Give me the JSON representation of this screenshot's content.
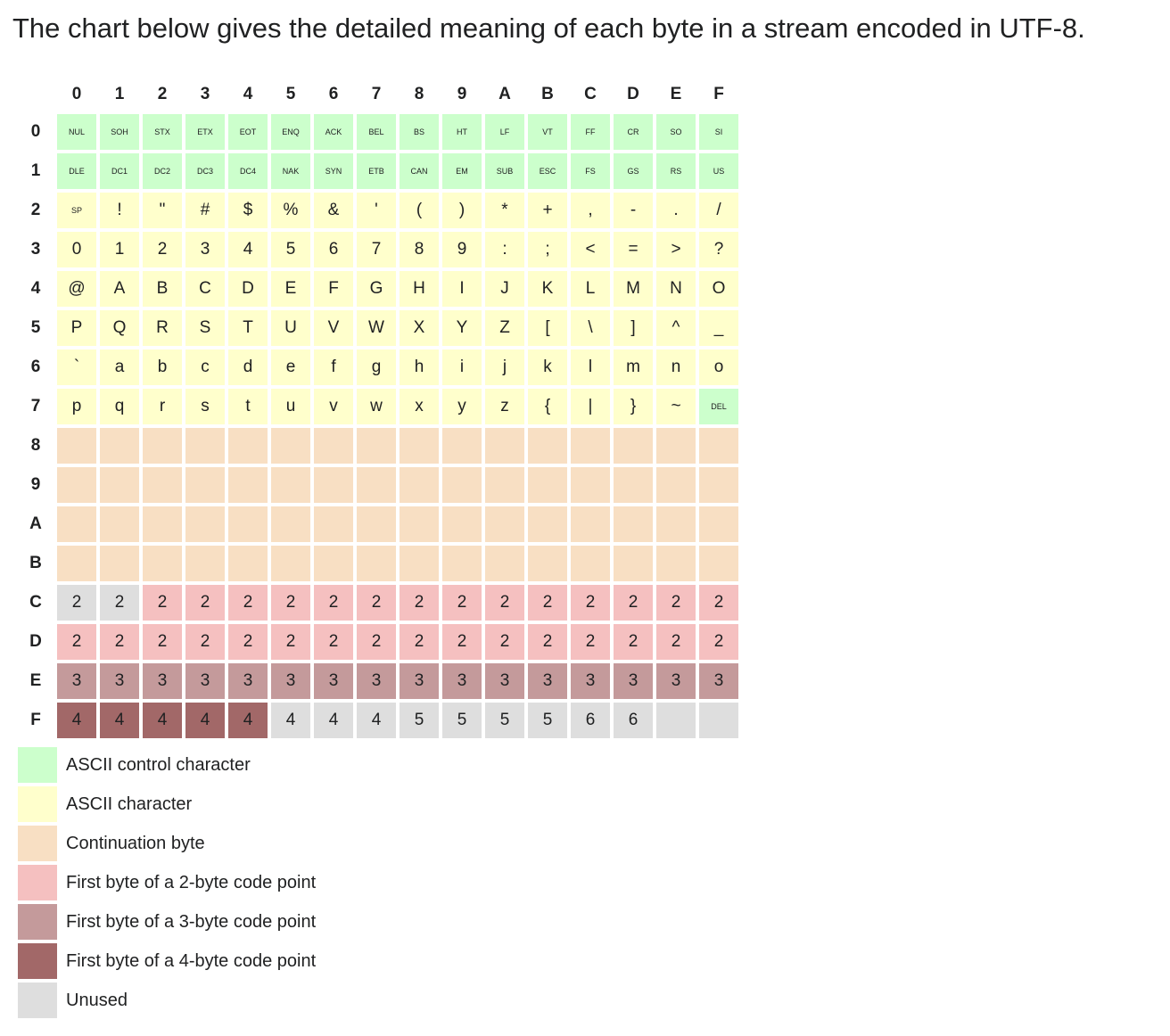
{
  "intro": "The chart below gives the detailed meaning of each byte in a stream encoded in UTF-8.",
  "colors": {
    "ctrl": "#ccffcc",
    "ascii": "#ffffcc",
    "cont": "#f8dfc3",
    "b2": "#f5c0c0",
    "b3": "#c49a9b",
    "b4": "#a26868",
    "unused": "#dedede"
  },
  "columns": [
    "0",
    "1",
    "2",
    "3",
    "4",
    "5",
    "6",
    "7",
    "8",
    "9",
    "A",
    "B",
    "C",
    "D",
    "E",
    "F"
  ],
  "rows": [
    {
      "head": "0",
      "cells": [
        {
          "t": "NUL",
          "k": "ctrl"
        },
        {
          "t": "SOH",
          "k": "ctrl"
        },
        {
          "t": "STX",
          "k": "ctrl"
        },
        {
          "t": "ETX",
          "k": "ctrl"
        },
        {
          "t": "EOT",
          "k": "ctrl"
        },
        {
          "t": "ENQ",
          "k": "ctrl"
        },
        {
          "t": "ACK",
          "k": "ctrl"
        },
        {
          "t": "BEL",
          "k": "ctrl"
        },
        {
          "t": "BS",
          "k": "ctrl"
        },
        {
          "t": "HT",
          "k": "ctrl"
        },
        {
          "t": "LF",
          "k": "ctrl"
        },
        {
          "t": "VT",
          "k": "ctrl"
        },
        {
          "t": "FF",
          "k": "ctrl"
        },
        {
          "t": "CR",
          "k": "ctrl"
        },
        {
          "t": "SO",
          "k": "ctrl"
        },
        {
          "t": "SI",
          "k": "ctrl"
        }
      ]
    },
    {
      "head": "1",
      "cells": [
        {
          "t": "DLE",
          "k": "ctrl"
        },
        {
          "t": "DC1",
          "k": "ctrl"
        },
        {
          "t": "DC2",
          "k": "ctrl"
        },
        {
          "t": "DC3",
          "k": "ctrl"
        },
        {
          "t": "DC4",
          "k": "ctrl"
        },
        {
          "t": "NAK",
          "k": "ctrl"
        },
        {
          "t": "SYN",
          "k": "ctrl"
        },
        {
          "t": "ETB",
          "k": "ctrl"
        },
        {
          "t": "CAN",
          "k": "ctrl"
        },
        {
          "t": "EM",
          "k": "ctrl"
        },
        {
          "t": "SUB",
          "k": "ctrl"
        },
        {
          "t": "ESC",
          "k": "ctrl"
        },
        {
          "t": "FS",
          "k": "ctrl"
        },
        {
          "t": "GS",
          "k": "ctrl"
        },
        {
          "t": "RS",
          "k": "ctrl"
        },
        {
          "t": "US",
          "k": "ctrl"
        }
      ]
    },
    {
      "head": "2",
      "cells": [
        {
          "t": "SP",
          "k": "ascii",
          "small": true
        },
        {
          "t": "!",
          "k": "ascii"
        },
        {
          "t": "\"",
          "k": "ascii"
        },
        {
          "t": "#",
          "k": "ascii"
        },
        {
          "t": "$",
          "k": "ascii"
        },
        {
          "t": "%",
          "k": "ascii"
        },
        {
          "t": "&",
          "k": "ascii"
        },
        {
          "t": "'",
          "k": "ascii"
        },
        {
          "t": "(",
          "k": "ascii"
        },
        {
          "t": ")",
          "k": "ascii"
        },
        {
          "t": "*",
          "k": "ascii"
        },
        {
          "t": "+",
          "k": "ascii"
        },
        {
          "t": ",",
          "k": "ascii"
        },
        {
          "t": "-",
          "k": "ascii"
        },
        {
          "t": ".",
          "k": "ascii"
        },
        {
          "t": "/",
          "k": "ascii"
        }
      ]
    },
    {
      "head": "3",
      "cells": [
        {
          "t": "0",
          "k": "ascii"
        },
        {
          "t": "1",
          "k": "ascii"
        },
        {
          "t": "2",
          "k": "ascii"
        },
        {
          "t": "3",
          "k": "ascii"
        },
        {
          "t": "4",
          "k": "ascii"
        },
        {
          "t": "5",
          "k": "ascii"
        },
        {
          "t": "6",
          "k": "ascii"
        },
        {
          "t": "7",
          "k": "ascii"
        },
        {
          "t": "8",
          "k": "ascii"
        },
        {
          "t": "9",
          "k": "ascii"
        },
        {
          "t": ":",
          "k": "ascii"
        },
        {
          "t": ";",
          "k": "ascii"
        },
        {
          "t": "<",
          "k": "ascii"
        },
        {
          "t": "=",
          "k": "ascii"
        },
        {
          "t": ">",
          "k": "ascii"
        },
        {
          "t": "?",
          "k": "ascii"
        }
      ]
    },
    {
      "head": "4",
      "cells": [
        {
          "t": "@",
          "k": "ascii"
        },
        {
          "t": "A",
          "k": "ascii"
        },
        {
          "t": "B",
          "k": "ascii"
        },
        {
          "t": "C",
          "k": "ascii"
        },
        {
          "t": "D",
          "k": "ascii"
        },
        {
          "t": "E",
          "k": "ascii"
        },
        {
          "t": "F",
          "k": "ascii"
        },
        {
          "t": "G",
          "k": "ascii"
        },
        {
          "t": "H",
          "k": "ascii"
        },
        {
          "t": "I",
          "k": "ascii"
        },
        {
          "t": "J",
          "k": "ascii"
        },
        {
          "t": "K",
          "k": "ascii"
        },
        {
          "t": "L",
          "k": "ascii"
        },
        {
          "t": "M",
          "k": "ascii"
        },
        {
          "t": "N",
          "k": "ascii"
        },
        {
          "t": "O",
          "k": "ascii"
        }
      ]
    },
    {
      "head": "5",
      "cells": [
        {
          "t": "P",
          "k": "ascii"
        },
        {
          "t": "Q",
          "k": "ascii"
        },
        {
          "t": "R",
          "k": "ascii"
        },
        {
          "t": "S",
          "k": "ascii"
        },
        {
          "t": "T",
          "k": "ascii"
        },
        {
          "t": "U",
          "k": "ascii"
        },
        {
          "t": "V",
          "k": "ascii"
        },
        {
          "t": "W",
          "k": "ascii"
        },
        {
          "t": "X",
          "k": "ascii"
        },
        {
          "t": "Y",
          "k": "ascii"
        },
        {
          "t": "Z",
          "k": "ascii"
        },
        {
          "t": "[",
          "k": "ascii"
        },
        {
          "t": "\\",
          "k": "ascii"
        },
        {
          "t": "]",
          "k": "ascii"
        },
        {
          "t": "^",
          "k": "ascii"
        },
        {
          "t": "_",
          "k": "ascii"
        }
      ]
    },
    {
      "head": "6",
      "cells": [
        {
          "t": "`",
          "k": "ascii"
        },
        {
          "t": "a",
          "k": "ascii"
        },
        {
          "t": "b",
          "k": "ascii"
        },
        {
          "t": "c",
          "k": "ascii"
        },
        {
          "t": "d",
          "k": "ascii"
        },
        {
          "t": "e",
          "k": "ascii"
        },
        {
          "t": "f",
          "k": "ascii"
        },
        {
          "t": "g",
          "k": "ascii"
        },
        {
          "t": "h",
          "k": "ascii"
        },
        {
          "t": "i",
          "k": "ascii"
        },
        {
          "t": "j",
          "k": "ascii"
        },
        {
          "t": "k",
          "k": "ascii"
        },
        {
          "t": "l",
          "k": "ascii"
        },
        {
          "t": "m",
          "k": "ascii"
        },
        {
          "t": "n",
          "k": "ascii"
        },
        {
          "t": "o",
          "k": "ascii"
        }
      ]
    },
    {
      "head": "7",
      "cells": [
        {
          "t": "p",
          "k": "ascii"
        },
        {
          "t": "q",
          "k": "ascii"
        },
        {
          "t": "r",
          "k": "ascii"
        },
        {
          "t": "s",
          "k": "ascii"
        },
        {
          "t": "t",
          "k": "ascii"
        },
        {
          "t": "u",
          "k": "ascii"
        },
        {
          "t": "v",
          "k": "ascii"
        },
        {
          "t": "w",
          "k": "ascii"
        },
        {
          "t": "x",
          "k": "ascii"
        },
        {
          "t": "y",
          "k": "ascii"
        },
        {
          "t": "z",
          "k": "ascii"
        },
        {
          "t": "{",
          "k": "ascii"
        },
        {
          "t": "|",
          "k": "ascii"
        },
        {
          "t": "}",
          "k": "ascii"
        },
        {
          "t": "~",
          "k": "ascii"
        },
        {
          "t": "DEL",
          "k": "ctrl"
        }
      ]
    },
    {
      "head": "8",
      "cells": [
        {
          "t": "",
          "k": "cont"
        },
        {
          "t": "",
          "k": "cont"
        },
        {
          "t": "",
          "k": "cont"
        },
        {
          "t": "",
          "k": "cont"
        },
        {
          "t": "",
          "k": "cont"
        },
        {
          "t": "",
          "k": "cont"
        },
        {
          "t": "",
          "k": "cont"
        },
        {
          "t": "",
          "k": "cont"
        },
        {
          "t": "",
          "k": "cont"
        },
        {
          "t": "",
          "k": "cont"
        },
        {
          "t": "",
          "k": "cont"
        },
        {
          "t": "",
          "k": "cont"
        },
        {
          "t": "",
          "k": "cont"
        },
        {
          "t": "",
          "k": "cont"
        },
        {
          "t": "",
          "k": "cont"
        },
        {
          "t": "",
          "k": "cont"
        }
      ]
    },
    {
      "head": "9",
      "cells": [
        {
          "t": "",
          "k": "cont"
        },
        {
          "t": "",
          "k": "cont"
        },
        {
          "t": "",
          "k": "cont"
        },
        {
          "t": "",
          "k": "cont"
        },
        {
          "t": "",
          "k": "cont"
        },
        {
          "t": "",
          "k": "cont"
        },
        {
          "t": "",
          "k": "cont"
        },
        {
          "t": "",
          "k": "cont"
        },
        {
          "t": "",
          "k": "cont"
        },
        {
          "t": "",
          "k": "cont"
        },
        {
          "t": "",
          "k": "cont"
        },
        {
          "t": "",
          "k": "cont"
        },
        {
          "t": "",
          "k": "cont"
        },
        {
          "t": "",
          "k": "cont"
        },
        {
          "t": "",
          "k": "cont"
        },
        {
          "t": "",
          "k": "cont"
        }
      ]
    },
    {
      "head": "A",
      "cells": [
        {
          "t": "",
          "k": "cont"
        },
        {
          "t": "",
          "k": "cont"
        },
        {
          "t": "",
          "k": "cont"
        },
        {
          "t": "",
          "k": "cont"
        },
        {
          "t": "",
          "k": "cont"
        },
        {
          "t": "",
          "k": "cont"
        },
        {
          "t": "",
          "k": "cont"
        },
        {
          "t": "",
          "k": "cont"
        },
        {
          "t": "",
          "k": "cont"
        },
        {
          "t": "",
          "k": "cont"
        },
        {
          "t": "",
          "k": "cont"
        },
        {
          "t": "",
          "k": "cont"
        },
        {
          "t": "",
          "k": "cont"
        },
        {
          "t": "",
          "k": "cont"
        },
        {
          "t": "",
          "k": "cont"
        },
        {
          "t": "",
          "k": "cont"
        }
      ]
    },
    {
      "head": "B",
      "cells": [
        {
          "t": "",
          "k": "cont"
        },
        {
          "t": "",
          "k": "cont"
        },
        {
          "t": "",
          "k": "cont"
        },
        {
          "t": "",
          "k": "cont"
        },
        {
          "t": "",
          "k": "cont"
        },
        {
          "t": "",
          "k": "cont"
        },
        {
          "t": "",
          "k": "cont"
        },
        {
          "t": "",
          "k": "cont"
        },
        {
          "t": "",
          "k": "cont"
        },
        {
          "t": "",
          "k": "cont"
        },
        {
          "t": "",
          "k": "cont"
        },
        {
          "t": "",
          "k": "cont"
        },
        {
          "t": "",
          "k": "cont"
        },
        {
          "t": "",
          "k": "cont"
        },
        {
          "t": "",
          "k": "cont"
        },
        {
          "t": "",
          "k": "cont"
        }
      ]
    },
    {
      "head": "C",
      "cells": [
        {
          "t": "2",
          "k": "unused"
        },
        {
          "t": "2",
          "k": "unused"
        },
        {
          "t": "2",
          "k": "b2"
        },
        {
          "t": "2",
          "k": "b2"
        },
        {
          "t": "2",
          "k": "b2"
        },
        {
          "t": "2",
          "k": "b2"
        },
        {
          "t": "2",
          "k": "b2"
        },
        {
          "t": "2",
          "k": "b2"
        },
        {
          "t": "2",
          "k": "b2"
        },
        {
          "t": "2",
          "k": "b2"
        },
        {
          "t": "2",
          "k": "b2"
        },
        {
          "t": "2",
          "k": "b2"
        },
        {
          "t": "2",
          "k": "b2"
        },
        {
          "t": "2",
          "k": "b2"
        },
        {
          "t": "2",
          "k": "b2"
        },
        {
          "t": "2",
          "k": "b2"
        }
      ]
    },
    {
      "head": "D",
      "cells": [
        {
          "t": "2",
          "k": "b2"
        },
        {
          "t": "2",
          "k": "b2"
        },
        {
          "t": "2",
          "k": "b2"
        },
        {
          "t": "2",
          "k": "b2"
        },
        {
          "t": "2",
          "k": "b2"
        },
        {
          "t": "2",
          "k": "b2"
        },
        {
          "t": "2",
          "k": "b2"
        },
        {
          "t": "2",
          "k": "b2"
        },
        {
          "t": "2",
          "k": "b2"
        },
        {
          "t": "2",
          "k": "b2"
        },
        {
          "t": "2",
          "k": "b2"
        },
        {
          "t": "2",
          "k": "b2"
        },
        {
          "t": "2",
          "k": "b2"
        },
        {
          "t": "2",
          "k": "b2"
        },
        {
          "t": "2",
          "k": "b2"
        },
        {
          "t": "2",
          "k": "b2"
        }
      ]
    },
    {
      "head": "E",
      "cells": [
        {
          "t": "3",
          "k": "b3"
        },
        {
          "t": "3",
          "k": "b3"
        },
        {
          "t": "3",
          "k": "b3"
        },
        {
          "t": "3",
          "k": "b3"
        },
        {
          "t": "3",
          "k": "b3"
        },
        {
          "t": "3",
          "k": "b3"
        },
        {
          "t": "3",
          "k": "b3"
        },
        {
          "t": "3",
          "k": "b3"
        },
        {
          "t": "3",
          "k": "b3"
        },
        {
          "t": "3",
          "k": "b3"
        },
        {
          "t": "3",
          "k": "b3"
        },
        {
          "t": "3",
          "k": "b3"
        },
        {
          "t": "3",
          "k": "b3"
        },
        {
          "t": "3",
          "k": "b3"
        },
        {
          "t": "3",
          "k": "b3"
        },
        {
          "t": "3",
          "k": "b3"
        }
      ]
    },
    {
      "head": "F",
      "cells": [
        {
          "t": "4",
          "k": "b4"
        },
        {
          "t": "4",
          "k": "b4"
        },
        {
          "t": "4",
          "k": "b4"
        },
        {
          "t": "4",
          "k": "b4"
        },
        {
          "t": "4",
          "k": "b4"
        },
        {
          "t": "4",
          "k": "unused"
        },
        {
          "t": "4",
          "k": "unused"
        },
        {
          "t": "4",
          "k": "unused"
        },
        {
          "t": "5",
          "k": "unused"
        },
        {
          "t": "5",
          "k": "unused"
        },
        {
          "t": "5",
          "k": "unused"
        },
        {
          "t": "5",
          "k": "unused"
        },
        {
          "t": "6",
          "k": "unused"
        },
        {
          "t": "6",
          "k": "unused"
        },
        {
          "t": "",
          "k": "unused"
        },
        {
          "t": "",
          "k": "unused"
        }
      ]
    }
  ],
  "legend": [
    {
      "k": "ctrl",
      "label": "ASCII control character"
    },
    {
      "k": "ascii",
      "label": "ASCII character"
    },
    {
      "k": "cont",
      "label": "Continuation byte"
    },
    {
      "k": "b2",
      "label": "First byte of a 2-byte code point"
    },
    {
      "k": "b3",
      "label": "First byte of a 3-byte code point"
    },
    {
      "k": "b4",
      "label": "First byte of a 4-byte code point"
    },
    {
      "k": "unused",
      "label": "Unused"
    }
  ]
}
